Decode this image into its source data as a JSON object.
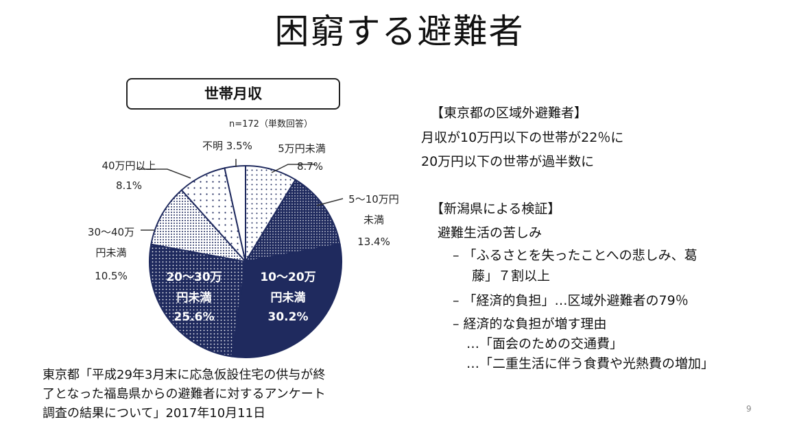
{
  "slide": {
    "title": "困窮する避難者",
    "page_number": "9"
  },
  "chart_heading": "世帯月収",
  "chart_note": "n=172（単数回答）",
  "chart_data": {
    "type": "pie",
    "title": "世帯月収",
    "slices": [
      {
        "label_lines": [
          "5万円未満"
        ],
        "value": 8.7,
        "value_label": "8.7%"
      },
      {
        "label_lines": [
          "5～10万円",
          "未満"
        ],
        "value": 13.4,
        "value_label": "13.4%"
      },
      {
        "label_lines": [
          "10～20万",
          "円未満"
        ],
        "value": 30.2,
        "value_label": "30.2%"
      },
      {
        "label_lines": [
          "20～30万",
          "円未満"
        ],
        "value": 25.6,
        "value_label": "25.6%"
      },
      {
        "label_lines": [
          "30～40万",
          "円未満"
        ],
        "value": 10.5,
        "value_label": "10.5%"
      },
      {
        "label_lines": [
          "40万円以上"
        ],
        "value": 8.1,
        "value_label": "8.1%"
      },
      {
        "label_lines": [
          "不明"
        ],
        "value": 3.5,
        "value_label": "3.5%"
      }
    ]
  },
  "right_panel": {
    "tokyo_heading": "【東京都の区域外避難者】",
    "tokyo_line1": "月収が10万円以下の世帯が22％に",
    "tokyo_line2": "20万円以下の世帯が過半数に",
    "niigata_heading": "【新潟県による検証】",
    "niigata_sub": "避難生活の苦しみ",
    "bullet1_line1": "– 「ふるさとを失ったことへの悲しみ、葛",
    "bullet1_line2": "藤」７割以上",
    "bullet2": "– 「経済的負担」…区域外避難者の79％",
    "bullet3": "– 経済的な負担が増す理由",
    "bullet3_sub1": "…「面会のための交通費」",
    "bullet3_sub2": "…「二重生活に伴う食費や光熱費の増加」"
  },
  "source": {
    "line1": "東京都「平成29年3月末に応急仮設住宅の供与が終",
    "line2": "了となった福島県からの避難者に対するアンケート",
    "line3": "調査の結果について」2017年10月11日"
  }
}
